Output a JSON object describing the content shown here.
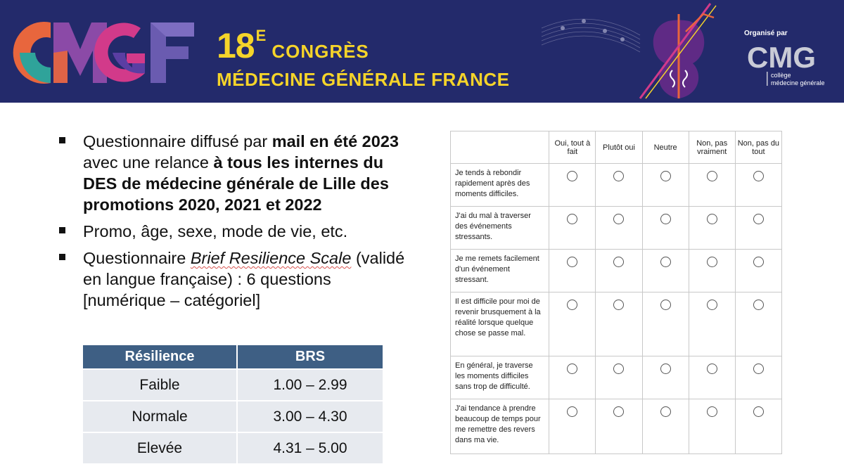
{
  "header": {
    "logo_text": "CMGF",
    "congress_number": "18",
    "congress_superscript": "E",
    "congress_word": "CONGRÈS",
    "congress_subtitle": "MÉDECINE GÉNÉRALE FRANCE",
    "organiser_label": "Organisé par",
    "organiser_logo_text": "CMG",
    "organiser_logo_sub1": "collège",
    "organiser_logo_sub2": "médecine générale"
  },
  "bullets": {
    "b1_p1": "Questionnaire diffusé par ",
    "b1_bold1": "mail en été 2023",
    "b1_p2": " avec une relance ",
    "b1_bold2": "à tous les internes du DES de médecine générale de Lille des promotions 2020, 2021 et 2022",
    "b2": "Promo, âge, sexe, mode de vie, etc.",
    "b3_p1": "Questionnaire ",
    "b3_italic": "Brief Resilience Scale",
    "b3_p2": " (validé en langue française) : 6 questions [numérique – catégoriel]"
  },
  "resilience_table": {
    "headers": [
      "Résilience",
      "BRS"
    ],
    "rows": [
      [
        "Faible",
        "1.00 – 2.99"
      ],
      [
        "Normale",
        "3.00 – 4.30"
      ],
      [
        "Elevée",
        "4.31 – 5.00"
      ]
    ]
  },
  "questionnaire": {
    "columns": [
      "Oui, tout à fait",
      "Plutôt oui",
      "Neutre",
      "Non, pas vraiment",
      "Non, pas du tout"
    ],
    "questions": [
      "Je tends à rebondir rapidement après des moments difficiles.",
      "J'ai du mal à traverser des événements stressants.",
      "Je me remets facilement d'un événement stressant.",
      "Il est difficile pour moi de revenir brusquement à la réalité lorsque quelque chose se passe mal.",
      "En général, je traverse les moments difficiles sans trop de difficulté.",
      "J'ai tendance à prendre beaucoup de temps pour me remettre des revers dans ma vie."
    ]
  },
  "colors": {
    "banner_bg": "#232a6b",
    "banner_text": "#f5d42a",
    "table_header": "#3e5f84",
    "table_cell": "#e7eaef"
  }
}
